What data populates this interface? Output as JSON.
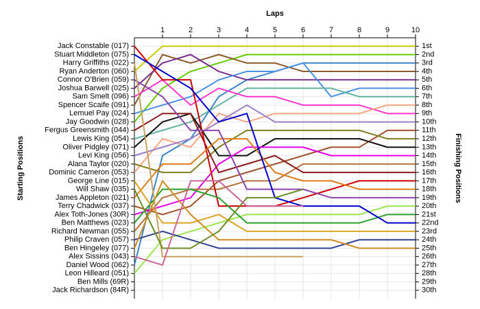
{
  "chart_data": {
    "type": "line",
    "title": "Laps",
    "y_label": "Starting Positions",
    "y2_label": "Finishing Positions",
    "x": [
      0,
      1,
      2,
      3,
      4,
      5,
      6,
      7,
      8,
      9,
      10
    ],
    "xlim": [
      0,
      10
    ],
    "xticks": [
      1,
      2,
      3,
      4,
      5,
      6,
      7,
      8,
      9,
      10
    ],
    "ylim": [
      0,
      31
    ],
    "y_inverted": true,
    "grid": true,
    "yticks": [
      {
        "value": 1,
        "label": "Jack Constable (017)"
      },
      {
        "value": 2,
        "label": "Stuart Middleton (075)"
      },
      {
        "value": 3,
        "label": "Harry Griffiths (022)"
      },
      {
        "value": 4,
        "label": "Ryan Anderton (060)"
      },
      {
        "value": 5,
        "label": "Connor O'Brien (059)"
      },
      {
        "value": 6,
        "label": "Joshua Barwell (025)"
      },
      {
        "value": 7,
        "label": "Sam Smelt (096)"
      },
      {
        "value": 8,
        "label": "Spencer Scaife (091)"
      },
      {
        "value": 9,
        "label": "Lemuel Pay (024)"
      },
      {
        "value": 10,
        "label": "Jay Goodwin (028)"
      },
      {
        "value": 11,
        "label": "Fergus Greensmith (044)"
      },
      {
        "value": 12,
        "label": "Lewis King (054)"
      },
      {
        "value": 13,
        "label": "Oliver Pidgley (071)"
      },
      {
        "value": 14,
        "label": "Levi King (056)"
      },
      {
        "value": 15,
        "label": "Alana Taylor (020)"
      },
      {
        "value": 16,
        "label": "Dominic Cameron (053)"
      },
      {
        "value": 17,
        "label": "George Line (015)"
      },
      {
        "value": 18,
        "label": "Will Shaw (035)"
      },
      {
        "value": 19,
        "label": "James Appleton (021)"
      },
      {
        "value": 20,
        "label": "Terry Chadwick (037)"
      },
      {
        "value": 21,
        "label": "Alex Toth-Jones (30R)"
      },
      {
        "value": 22,
        "label": "Ben Matthews (023)"
      },
      {
        "value": 23,
        "label": "Richard Newman (055)"
      },
      {
        "value": 24,
        "label": "Philip Craven (057)"
      },
      {
        "value": 25,
        "label": "Ben Hingeley (077)"
      },
      {
        "value": 26,
        "label": "Alex Sissins (043)"
      },
      {
        "value": 27,
        "label": "Daniel Wood (062)"
      },
      {
        "value": 28,
        "label": "Leon Hilleard (051)"
      },
      {
        "value": 29,
        "label": "Ben Mills (69R)"
      },
      {
        "value": 30,
        "label": "Jack Richardson (84R)"
      }
    ],
    "y2lim": [
      0,
      31
    ],
    "y2ticks": [
      {
        "value": 1,
        "label": "1st"
      },
      {
        "value": 2,
        "label": "2nd"
      },
      {
        "value": 3,
        "label": "3rd"
      },
      {
        "value": 4,
        "label": "4th"
      },
      {
        "value": 5,
        "label": "5th"
      },
      {
        "value": 6,
        "label": "6th"
      },
      {
        "value": 7,
        "label": "7th"
      },
      {
        "value": 8,
        "label": "8th"
      },
      {
        "value": 9,
        "label": "9th"
      },
      {
        "value": 10,
        "label": "10th"
      },
      {
        "value": 11,
        "label": "11th"
      },
      {
        "value": 12,
        "label": "12th"
      },
      {
        "value": 13,
        "label": "13th"
      },
      {
        "value": 14,
        "label": "14th"
      },
      {
        "value": 15,
        "label": "15th"
      },
      {
        "value": 16,
        "label": "16th"
      },
      {
        "value": 17,
        "label": "17th"
      },
      {
        "value": 18,
        "label": "18th"
      },
      {
        "value": 19,
        "label": "19th"
      },
      {
        "value": 20,
        "label": "20th"
      },
      {
        "value": 21,
        "label": "21st"
      },
      {
        "value": 22,
        "label": "22nd"
      },
      {
        "value": 23,
        "label": "23rd"
      },
      {
        "value": 24,
        "label": "24th"
      },
      {
        "value": 25,
        "label": "25th"
      },
      {
        "value": 26,
        "label": "26th"
      },
      {
        "value": 27,
        "label": "27th"
      },
      {
        "value": 28,
        "label": "28th"
      },
      {
        "value": 29,
        "label": "29th"
      },
      {
        "value": 30,
        "label": "30th"
      }
    ],
    "series": [
      {
        "color": "#cccc00",
        "values": [
          4,
          1,
          1,
          1,
          1,
          1,
          1,
          1,
          1,
          1,
          1
        ]
      },
      {
        "color": "#66cc00",
        "values": [
          10,
          6,
          4,
          3,
          2,
          2,
          2,
          2,
          2,
          2,
          2
        ]
      },
      {
        "color": "#3d85c6",
        "values": [
          27,
          14,
          12,
          7,
          5,
          4,
          3,
          3,
          3,
          3,
          3
        ]
      },
      {
        "color": "#8b5a2b",
        "values": [
          8,
          2,
          3,
          2,
          3,
          3,
          4,
          4,
          4,
          4,
          4
        ]
      },
      {
        "color": "#7b2d8e",
        "values": [
          6,
          3,
          2,
          4,
          5,
          5,
          5,
          5,
          5,
          5,
          5
        ]
      },
      {
        "color": "#4a90e2",
        "values": [
          9,
          8,
          7,
          5,
          4,
          4,
          3,
          7,
          6,
          6,
          6
        ]
      },
      {
        "color": "#5fb3a0",
        "values": [
          12,
          11,
          10,
          8,
          6,
          6,
          6,
          6,
          7,
          7,
          7
        ]
      },
      {
        "color": "#ff33cc",
        "values": [
          7,
          5,
          8,
          6,
          7,
          7,
          8,
          8,
          8,
          9,
          9
        ]
      },
      {
        "color": "#f4a582",
        "values": [
          16,
          12,
          13,
          9,
          10,
          9,
          9,
          9,
          9,
          8,
          8
        ]
      },
      {
        "color": "#9b7fc7",
        "values": [
          14,
          13,
          12,
          10,
          8,
          10,
          10,
          10,
          10,
          10,
          10
        ]
      },
      {
        "color": "#a0522d",
        "values": [
          20,
          21,
          20,
          17,
          16,
          15,
          14,
          13,
          13,
          11,
          11
        ]
      },
      {
        "color": "#7f7f1f",
        "values": [
          15,
          16,
          16,
          13,
          11,
          11,
          11,
          11,
          11,
          12,
          12
        ]
      },
      {
        "color": "#111111",
        "values": [
          13,
          10,
          9,
          14,
          14,
          12,
          12,
          12,
          12,
          13,
          13
        ]
      },
      {
        "color": "#e600e6",
        "values": [
          21,
          20,
          19,
          15,
          13,
          13,
          13,
          14,
          14,
          14,
          14
        ]
      },
      {
        "color": "#b8733a",
        "values": [
          23,
          19,
          18,
          18,
          17,
          17,
          15,
          15,
          15,
          15,
          15
        ]
      },
      {
        "color": "#8b1a1a",
        "values": [
          11,
          9,
          9,
          16,
          15,
          14,
          16,
          16,
          16,
          16,
          16
        ]
      },
      {
        "color": "#cc0000",
        "values": [
          1,
          5,
          5,
          20,
          20,
          20,
          19,
          18,
          17,
          17,
          17
        ]
      },
      {
        "color": "#e07b1a",
        "values": [
          19,
          15,
          15,
          12,
          12,
          16,
          17,
          17,
          18,
          18,
          18
        ]
      },
      {
        "color": "#8e44ad",
        "values": [
          5,
          7,
          11,
          11,
          18,
          18,
          18,
          19,
          19,
          19,
          19
        ]
      },
      {
        "color": "#99e64d",
        "values": [
          28,
          24,
          23,
          22,
          21,
          21,
          21,
          21,
          21,
          20,
          20
        ]
      },
      {
        "color": "#2ca02c",
        "values": [
          22,
          18,
          18,
          19,
          22,
          22,
          22,
          22,
          22,
          21,
          21
        ]
      },
      {
        "color": "#0000cc",
        "values": [
          2,
          4,
          6,
          10,
          9,
          19,
          20,
          20,
          20,
          22,
          22
        ]
      },
      {
        "color": "#daa520",
        "values": [
          17,
          22,
          22,
          21,
          23,
          23,
          23,
          23,
          23,
          23,
          23
        ]
      },
      {
        "color": "#2f3f8f",
        "values": [
          24,
          23,
          24,
          25,
          25,
          25,
          25,
          25,
          24,
          24,
          24
        ]
      },
      {
        "color": "#d2891f",
        "values": [
          25,
          17,
          21,
          24,
          24,
          24,
          24,
          24,
          25,
          25,
          25
        ]
      },
      {
        "color": "#c8a060",
        "values": [
          3,
          26,
          26,
          26,
          26,
          26,
          26,
          null,
          null,
          null,
          null
        ]
      },
      {
        "color": "#6b8e23",
        "values": [
          18,
          25,
          25,
          23,
          19,
          19,
          18,
          null,
          null,
          null,
          null
        ]
      },
      {
        "color": "#cc6699",
        "values": [
          26,
          27,
          17,
          17,
          20,
          20,
          20,
          null,
          null,
          null,
          null
        ]
      }
    ]
  }
}
